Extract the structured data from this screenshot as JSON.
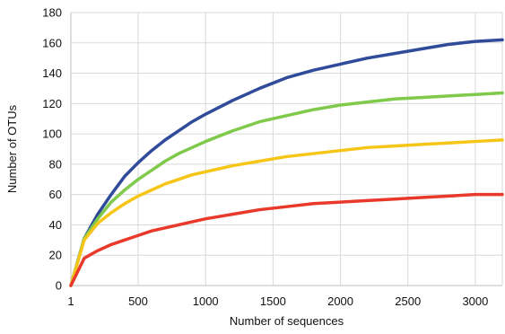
{
  "chart_data": {
    "type": "line",
    "title": "",
    "xlabel": "Number of sequences",
    "ylabel": "Number of OTUs",
    "xlim": [
      1,
      3200
    ],
    "ylim": [
      0,
      180
    ],
    "x_ticks": [
      1,
      500,
      1000,
      1500,
      2000,
      2500,
      3000
    ],
    "y_ticks": [
      0,
      20,
      40,
      60,
      80,
      100,
      120,
      140,
      160,
      180
    ],
    "grid": true,
    "legend": "none",
    "series": [
      {
        "color": "#2f4b9a",
        "x": [
          1,
          100,
          200,
          300,
          400,
          500,
          600,
          700,
          800,
          900,
          1000,
          1200,
          1400,
          1600,
          1800,
          2000,
          2200,
          2400,
          2600,
          2800,
          3000,
          3200
        ],
        "y": [
          0,
          31,
          47,
          60,
          72,
          81,
          89,
          96,
          102,
          108,
          113,
          122,
          130,
          137,
          142,
          146,
          150,
          153,
          156,
          159,
          161,
          162
        ]
      },
      {
        "color": "#7fc94b",
        "x": [
          1,
          100,
          200,
          300,
          400,
          500,
          600,
          700,
          800,
          900,
          1000,
          1200,
          1400,
          1600,
          1800,
          2000,
          2200,
          2400,
          2600,
          2800,
          3000,
          3200
        ],
        "y": [
          0,
          31,
          44,
          55,
          63,
          70,
          76,
          82,
          87,
          91,
          95,
          102,
          108,
          112,
          116,
          119,
          121,
          123,
          124,
          125,
          126,
          127
        ]
      },
      {
        "color": "#f5c518",
        "x": [
          1,
          100,
          200,
          300,
          400,
          500,
          600,
          700,
          800,
          900,
          1000,
          1200,
          1400,
          1600,
          1800,
          2000,
          2200,
          2400,
          2600,
          2800,
          3000,
          3200
        ],
        "y": [
          0,
          30,
          41,
          48,
          54,
          59,
          63,
          67,
          70,
          73,
          75,
          79,
          82,
          85,
          87,
          89,
          91,
          92,
          93,
          94,
          95,
          96
        ]
      },
      {
        "color": "#e8392b",
        "x": [
          1,
          100,
          200,
          300,
          400,
          500,
          600,
          700,
          800,
          900,
          1000,
          1200,
          1400,
          1600,
          1800,
          2000,
          2200,
          2400,
          2600,
          2800,
          3000,
          3200
        ],
        "y": [
          0,
          18,
          23,
          27,
          30,
          33,
          36,
          38,
          40,
          42,
          44,
          47,
          50,
          52,
          54,
          55,
          56,
          57,
          58,
          59,
          60,
          60
        ]
      }
    ]
  }
}
